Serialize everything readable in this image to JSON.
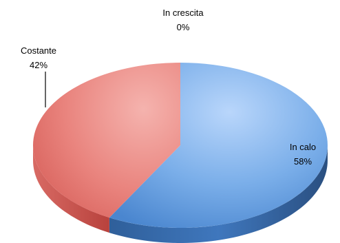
{
  "chart_data": {
    "type": "pie",
    "three_d": true,
    "legend": "none",
    "slices": [
      {
        "label": "In calo",
        "value": 58,
        "value_label": "58%",
        "color": "#5b9bd5"
      },
      {
        "label": "Costante",
        "value": 42,
        "value_label": "42%",
        "color": "#e0615a"
      },
      {
        "label": "In crescita",
        "value": 0,
        "value_label": "0%",
        "color": "#9bbb59"
      }
    ]
  }
}
